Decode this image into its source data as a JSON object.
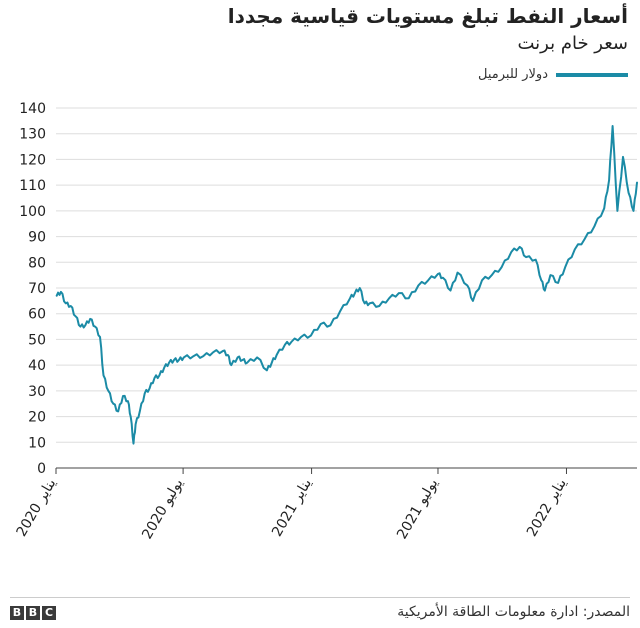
{
  "title": "أسعار النفط تبلغ مستويات قياسية مجددا",
  "subtitle": "سعر خام برنت",
  "legend": {
    "label": "دولار للبرميل",
    "color": "#1b8ba6"
  },
  "footer": {
    "logo_letters": [
      "B",
      "B",
      "C"
    ],
    "source": "المصدر: ادارة معلومات الطاقة الأمريكية"
  },
  "chart_data": {
    "type": "line",
    "title": "أسعار النفط تبلغ مستويات قياسية مجددا",
    "subtitle": "سعر خام برنت",
    "ylabel": "",
    "xlabel": "",
    "ylim": [
      0,
      140
    ],
    "yticks": [
      0,
      10,
      20,
      30,
      40,
      50,
      60,
      70,
      80,
      90,
      100,
      110,
      120,
      130,
      140
    ],
    "xlim": [
      "2020-01-01",
      "2022-04-12"
    ],
    "xticks": [
      {
        "date": "2020-01-01",
        "label": "يناير 2020"
      },
      {
        "date": "2020-07-01",
        "label": "يوليو 2020"
      },
      {
        "date": "2021-01-01",
        "label": "يناير 2021"
      },
      {
        "date": "2021-07-01",
        "label": "يوليو 2021"
      },
      {
        "date": "2022-01-01",
        "label": "يناير 2022"
      }
    ],
    "grid": true,
    "legend_position": "top-right",
    "series": [
      {
        "name": "دولار للبرميل",
        "color": "#1b8ba6",
        "points": [
          [
            "2020-01-02",
            67
          ],
          [
            "2020-01-08",
            68.5
          ],
          [
            "2020-01-15",
            64
          ],
          [
            "2020-01-22",
            63
          ],
          [
            "2020-01-29",
            59
          ],
          [
            "2020-02-05",
            55
          ],
          [
            "2020-02-12",
            55.5
          ],
          [
            "2020-02-19",
            58
          ],
          [
            "2020-02-26",
            55
          ],
          [
            "2020-03-04",
            51
          ],
          [
            "2020-03-09",
            36
          ],
          [
            "2020-03-16",
            30
          ],
          [
            "2020-03-23",
            25
          ],
          [
            "2020-03-30",
            22
          ],
          [
            "2020-04-06",
            28
          ],
          [
            "2020-04-13",
            26
          ],
          [
            "2020-04-17",
            20
          ],
          [
            "2020-04-21",
            9.5
          ],
          [
            "2020-04-24",
            17
          ],
          [
            "2020-04-30",
            22
          ],
          [
            "2020-05-07",
            29
          ],
          [
            "2020-05-14",
            31
          ],
          [
            "2020-05-21",
            35
          ],
          [
            "2020-05-28",
            36
          ],
          [
            "2020-06-04",
            39
          ],
          [
            "2020-06-11",
            41
          ],
          [
            "2020-06-18",
            42
          ],
          [
            "2020-06-25",
            42
          ],
          [
            "2020-07-02",
            43
          ],
          [
            "2020-07-16",
            43.5
          ],
          [
            "2020-07-30",
            43.5
          ],
          [
            "2020-08-13",
            45
          ],
          [
            "2020-08-27",
            45.5
          ],
          [
            "2020-09-03",
            44
          ],
          [
            "2020-09-08",
            40
          ],
          [
            "2020-09-17",
            43
          ],
          [
            "2020-09-24",
            42
          ],
          [
            "2020-10-01",
            41
          ],
          [
            "2020-10-15",
            43
          ],
          [
            "2020-10-29",
            38
          ],
          [
            "2020-11-05",
            41
          ],
          [
            "2020-11-12",
            44
          ],
          [
            "2020-11-24",
            48
          ],
          [
            "2020-12-03",
            49
          ],
          [
            "2020-12-17",
            51
          ],
          [
            "2020-12-31",
            51.5
          ],
          [
            "2021-01-14",
            56
          ],
          [
            "2021-01-28",
            55.5
          ],
          [
            "2021-02-11",
            61
          ],
          [
            "2021-02-25",
            66
          ],
          [
            "2021-03-04",
            68
          ],
          [
            "2021-03-11",
            70
          ],
          [
            "2021-03-18",
            64
          ],
          [
            "2021-03-25",
            64
          ],
          [
            "2021-04-08",
            63
          ],
          [
            "2021-04-22",
            66
          ],
          [
            "2021-05-06",
            68
          ],
          [
            "2021-05-20",
            66
          ],
          [
            "2021-06-03",
            71
          ],
          [
            "2021-06-17",
            73
          ],
          [
            "2021-07-01",
            75.5
          ],
          [
            "2021-07-08",
            74
          ],
          [
            "2021-07-19",
            69
          ],
          [
            "2021-07-29",
            76
          ],
          [
            "2021-08-12",
            71
          ],
          [
            "2021-08-20",
            65
          ],
          [
            "2021-09-02",
            73
          ],
          [
            "2021-09-16",
            75
          ],
          [
            "2021-09-30",
            78
          ],
          [
            "2021-10-14",
            84
          ],
          [
            "2021-10-26",
            86
          ],
          [
            "2021-11-04",
            82
          ],
          [
            "2021-11-18",
            81
          ],
          [
            "2021-11-26",
            73
          ],
          [
            "2021-12-01",
            69
          ],
          [
            "2021-12-09",
            75
          ],
          [
            "2021-12-20",
            72
          ],
          [
            "2021-12-30",
            78
          ],
          [
            "2022-01-13",
            85
          ],
          [
            "2022-01-27",
            89
          ],
          [
            "2022-02-10",
            94
          ],
          [
            "2022-02-24",
            101
          ],
          [
            "2022-03-03",
            112
          ],
          [
            "2022-03-08",
            133
          ],
          [
            "2022-03-15",
            100
          ],
          [
            "2022-03-23",
            121
          ],
          [
            "2022-03-31",
            107
          ],
          [
            "2022-04-07",
            100
          ],
          [
            "2022-04-12",
            111
          ]
        ]
      }
    ]
  }
}
